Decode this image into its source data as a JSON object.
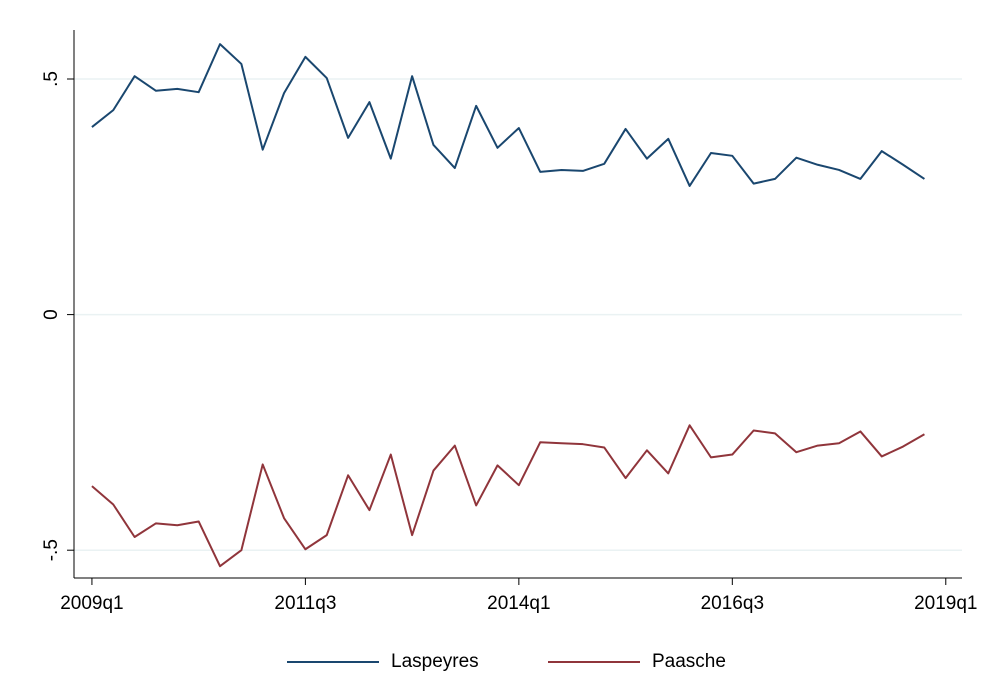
{
  "chart_data": {
    "type": "line",
    "x": [
      2009,
      2009.25,
      2009.5,
      2009.75,
      2010,
      2010.25,
      2010.5,
      2010.75,
      2011,
      2011.25,
      2011.5,
      2011.75,
      2012,
      2012.25,
      2012.5,
      2012.75,
      2013,
      2013.25,
      2013.5,
      2013.75,
      2014,
      2014.25,
      2014.5,
      2014.75,
      2015,
      2015.25,
      2015.5,
      2015.75,
      2016,
      2016.25,
      2016.5,
      2016.75,
      2017,
      2017.25,
      2017.5,
      2017.75,
      2018,
      2018.25,
      2018.5,
      2018.75
    ],
    "series": [
      {
        "name": "Laspeyres",
        "color": "#1a476f",
        "values": [
          0.398,
          0.434,
          0.506,
          0.475,
          0.479,
          0.472,
          0.574,
          0.532,
          0.35,
          0.47,
          0.547,
          0.502,
          0.375,
          0.451,
          0.331,
          0.506,
          0.36,
          0.311,
          0.443,
          0.354,
          0.396,
          0.303,
          0.307,
          0.305,
          0.32,
          0.394,
          0.331,
          0.373,
          0.273,
          0.343,
          0.337,
          0.278,
          0.288,
          0.333,
          0.318,
          0.307,
          0.288,
          0.347,
          0.318,
          0.288
        ]
      },
      {
        "name": "Paasche",
        "color": "#90353b",
        "values": [
          -0.364,
          -0.403,
          -0.472,
          -0.443,
          -0.447,
          -0.439,
          -0.534,
          -0.5,
          -0.318,
          -0.432,
          -0.498,
          -0.468,
          -0.341,
          -0.415,
          -0.297,
          -0.468,
          -0.331,
          -0.278,
          -0.405,
          -0.32,
          -0.362,
          -0.271,
          -0.273,
          -0.275,
          -0.282,
          -0.347,
          -0.288,
          -0.337,
          -0.235,
          -0.303,
          -0.297,
          -0.246,
          -0.252,
          -0.292,
          -0.278,
          -0.273,
          -0.248,
          -0.301,
          -0.28,
          -0.254
        ]
      }
    ],
    "xlim": [
      2008.79,
      2019.19
    ],
    "xticks": [
      {
        "value": 2009,
        "label": "2009q1"
      },
      {
        "value": 2011.5,
        "label": "2011q3"
      },
      {
        "value": 2014,
        "label": "2014q1"
      },
      {
        "value": 2016.5,
        "label": "2016q3"
      },
      {
        "value": 2019,
        "label": "2019q1"
      }
    ],
    "ylim": [
      -0.559,
      0.604
    ],
    "yticks": [
      {
        "value": -0.5,
        "label": "-.5"
      },
      0,
      {
        "value": 0.5,
        "label": ".5"
      }
    ],
    "grid": true,
    "legend": "bottom"
  }
}
